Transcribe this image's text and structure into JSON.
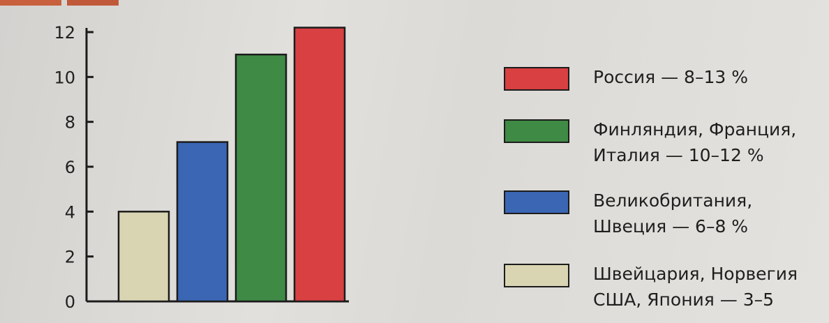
{
  "chart_data": {
    "type": "bar",
    "categories": [
      "Швейцария, Норвегия США, Япония — 3–5",
      "Великобритания, Швеция — 6–8 %",
      "Финляндия, Франция, Италия — 10–12 %",
      "Россия — 8–13 %"
    ],
    "values": [
      4.0,
      7.1,
      11.0,
      12.2
    ],
    "ylim": [
      0,
      12
    ],
    "yticks": [
      "0",
      "2",
      "4",
      "6",
      "8",
      "10",
      "12"
    ],
    "colors": [
      "#d9d5b3",
      "#3a66b3",
      "#3f8a45",
      "#d84042"
    ],
    "legend_position": "right",
    "grid": false
  },
  "legend": [
    {
      "label": "Россия — 8–13 %",
      "color": "#d84042"
    },
    {
      "label": "Финляндия, Франция,\nИталия — 10–12 %",
      "color": "#3f8a45"
    },
    {
      "label": "Великобритания,\nШвеция — 6–8 %",
      "color": "#3a66b3"
    },
    {
      "label": "Швейцария, Норвегия\nСША, Япония — 3–5",
      "color": "#d9d5b3"
    }
  ]
}
